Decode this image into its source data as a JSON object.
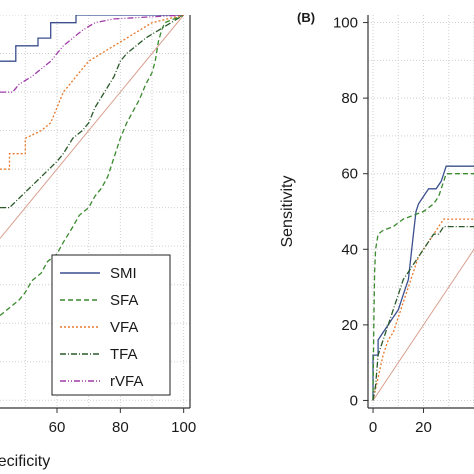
{
  "chart_data": [
    {
      "panel": "",
      "type": "line",
      "xlabel": "ecificity",
      "ylabel": "",
      "xlim": [
        42,
        102
      ],
      "ylim": [
        -2,
        100
      ],
      "xticks": [
        60,
        80,
        100
      ],
      "reference_line": true,
      "legend_position": "bottom-right",
      "series": [
        {
          "name": "SMI",
          "color": "#3b4f8f",
          "dash": "",
          "points": [
            [
              42,
              88
            ],
            [
              47,
              88
            ],
            [
              47,
              92
            ],
            [
              54,
              92
            ],
            [
              54,
              94
            ],
            [
              58,
              94
            ],
            [
              58,
              98
            ],
            [
              66,
              98
            ],
            [
              66,
              100
            ],
            [
              100,
              100
            ]
          ]
        },
        {
          "name": "SFA",
          "color": "#3a8a2e",
          "dash": "5,3",
          "points": [
            [
              42,
              22
            ],
            [
              45,
              24
            ],
            [
              48,
              26
            ],
            [
              50,
              28
            ],
            [
              52,
              31
            ],
            [
              55,
              33
            ],
            [
              57,
              36
            ],
            [
              60,
              38
            ],
            [
              62,
              41
            ],
            [
              65,
              45
            ],
            [
              67,
              48
            ],
            [
              70,
              50
            ],
            [
              72,
              53
            ],
            [
              74,
              55
            ],
            [
              76,
              58
            ],
            [
              78,
              63
            ],
            [
              80,
              68
            ],
            [
              82,
              72
            ],
            [
              84,
              75
            ],
            [
              86,
              78
            ],
            [
              88,
              82
            ],
            [
              90,
              85
            ],
            [
              91,
              88
            ],
            [
              92,
              93
            ],
            [
              93,
              96
            ],
            [
              94,
              98
            ],
            [
              100,
              100
            ]
          ]
        },
        {
          "name": "VFA",
          "color": "#e8782b",
          "dash": "2,2",
          "points": [
            [
              42,
              60
            ],
            [
              45,
              60
            ],
            [
              45,
              64
            ],
            [
              50,
              64
            ],
            [
              50,
              68
            ],
            [
              55,
              70
            ],
            [
              58,
              72
            ],
            [
              60,
              76
            ],
            [
              62,
              80
            ],
            [
              64,
              82
            ],
            [
              66,
              84
            ],
            [
              68,
              86
            ],
            [
              70,
              88
            ],
            [
              74,
              90
            ],
            [
              78,
              92
            ],
            [
              82,
              94
            ],
            [
              86,
              96
            ],
            [
              90,
              98
            ],
            [
              100,
              100
            ]
          ]
        },
        {
          "name": "TFA",
          "color": "#2a5a2a",
          "dash": "6,2,1,2",
          "points": [
            [
              42,
              50
            ],
            [
              45,
              50
            ],
            [
              50,
              54
            ],
            [
              55,
              58
            ],
            [
              60,
              62
            ],
            [
              62,
              64
            ],
            [
              65,
              68
            ],
            [
              68,
              70
            ],
            [
              70,
              72
            ],
            [
              72,
              76
            ],
            [
              75,
              80
            ],
            [
              78,
              84
            ],
            [
              80,
              88
            ],
            [
              82,
              90
            ],
            [
              85,
              92
            ],
            [
              88,
              94
            ],
            [
              92,
              96
            ],
            [
              96,
              98
            ],
            [
              100,
              100
            ]
          ]
        },
        {
          "name": "rVFA",
          "color": "#a03aa8",
          "dash": "6,2,1,2,1,2",
          "points": [
            [
              42,
              80
            ],
            [
              46,
              80
            ],
            [
              48,
              82
            ],
            [
              52,
              84
            ],
            [
              55,
              86
            ],
            [
              58,
              88
            ],
            [
              60,
              90
            ],
            [
              62,
              92
            ],
            [
              65,
              94
            ],
            [
              68,
              96
            ],
            [
              72,
              98
            ],
            [
              78,
              99
            ],
            [
              100,
              100
            ]
          ]
        }
      ]
    },
    {
      "panel": "(B)",
      "type": "line",
      "xlabel": "",
      "ylabel": "Sensitivity",
      "xlim": [
        -2,
        40
      ],
      "ylim": [
        -2,
        102
      ],
      "xticks": [
        0,
        20
      ],
      "yticks": [
        0,
        20,
        40,
        60,
        80,
        100
      ],
      "reference_line": true,
      "series": [
        {
          "color": "#3b4f8f",
          "dash": "",
          "points": [
            [
              0,
              0
            ],
            [
              0,
              12
            ],
            [
              2,
              12
            ],
            [
              2,
              16
            ],
            [
              4,
              18
            ],
            [
              6,
              20
            ],
            [
              8,
              22
            ],
            [
              10,
              24
            ],
            [
              12,
              28
            ],
            [
              14,
              32
            ],
            [
              15,
              38
            ],
            [
              16,
              44
            ],
            [
              17,
              50
            ],
            [
              18,
              52
            ],
            [
              20,
              54
            ],
            [
              22,
              56
            ],
            [
              25,
              56
            ],
            [
              27,
              58
            ],
            [
              28,
              60
            ],
            [
              29,
              62
            ],
            [
              40,
              62
            ]
          ]
        },
        {
          "color": "#3a8a2e",
          "dash": "5,3",
          "points": [
            [
              0,
              0
            ],
            [
              0.3,
              20
            ],
            [
              0.6,
              34
            ],
            [
              1,
              40
            ],
            [
              2,
              44
            ],
            [
              4,
              45
            ],
            [
              8,
              46
            ],
            [
              12,
              48
            ],
            [
              16,
              49
            ],
            [
              20,
              50
            ],
            [
              24,
              52
            ],
            [
              26,
              54
            ],
            [
              28,
              58
            ],
            [
              29,
              60
            ],
            [
              40,
              60
            ]
          ]
        },
        {
          "color": "#e8782b",
          "dash": "2,2",
          "points": [
            [
              0,
              0
            ],
            [
              2,
              6
            ],
            [
              4,
              12
            ],
            [
              6,
              16
            ],
            [
              8,
              18
            ],
            [
              10,
              22
            ],
            [
              12,
              26
            ],
            [
              14,
              30
            ],
            [
              16,
              34
            ],
            [
              18,
              38
            ],
            [
              20,
              40
            ],
            [
              22,
              42
            ],
            [
              24,
              44
            ],
            [
              26,
              46
            ],
            [
              28,
              48
            ],
            [
              40,
              48
            ]
          ]
        },
        {
          "color": "#2a5a2a",
          "dash": "6,2,1,2",
          "points": [
            [
              0,
              0
            ],
            [
              1,
              4
            ],
            [
              2,
              12
            ],
            [
              4,
              16
            ],
            [
              6,
              20
            ],
            [
              8,
              24
            ],
            [
              10,
              28
            ],
            [
              12,
              32
            ],
            [
              14,
              34
            ],
            [
              16,
              36
            ],
            [
              18,
              38
            ],
            [
              20,
              40
            ],
            [
              22,
              42
            ],
            [
              24,
              44
            ],
            [
              26,
              44
            ],
            [
              28,
              46
            ],
            [
              40,
              46
            ]
          ]
        }
      ]
    }
  ],
  "legend": {
    "entries": [
      "SMI",
      "SFA",
      "VFA",
      "TFA",
      "rVFA"
    ]
  }
}
